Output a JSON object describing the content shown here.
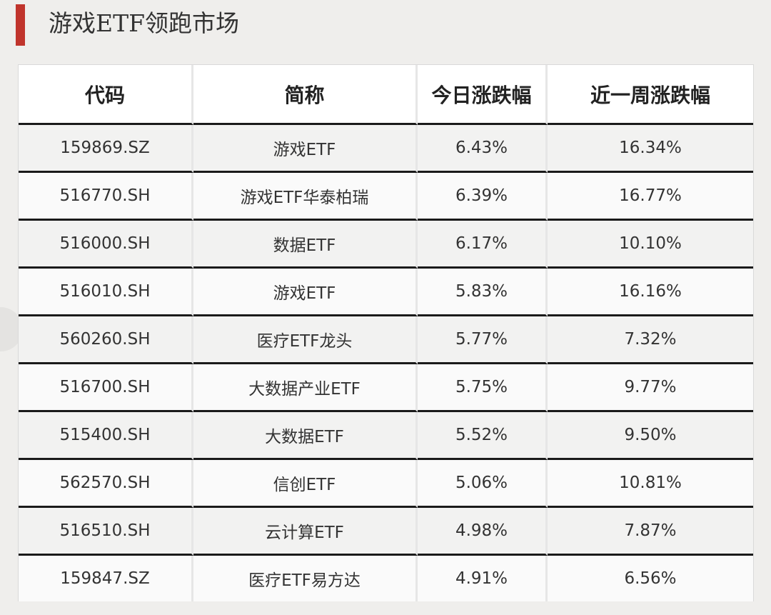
{
  "title": "游戏ETF领跑市场",
  "table": {
    "headers": [
      "代码",
      "简称",
      "今日涨跌幅",
      "近一周涨跌幅"
    ],
    "rows": [
      {
        "code": "159869.SZ",
        "name": "游戏ETF",
        "today": "6.43%",
        "week": "16.34%"
      },
      {
        "code": "516770.SH",
        "name": "游戏ETF华泰柏瑞",
        "today": "6.39%",
        "week": "16.77%"
      },
      {
        "code": "516000.SH",
        "name": "数据ETF",
        "today": "6.17%",
        "week": "10.10%"
      },
      {
        "code": "516010.SH",
        "name": "游戏ETF",
        "today": "5.83%",
        "week": "16.16%"
      },
      {
        "code": "560260.SH",
        "name": "医疗ETF龙头",
        "today": "5.77%",
        "week": "7.32%"
      },
      {
        "code": "516700.SH",
        "name": "大数据产业ETF",
        "today": "5.75%",
        "week": "9.77%"
      },
      {
        "code": "515400.SH",
        "name": "大数据ETF",
        "today": "5.52%",
        "week": "9.50%"
      },
      {
        "code": "562570.SH",
        "name": "信创ETF",
        "today": "5.06%",
        "week": "10.81%"
      },
      {
        "code": "516510.SH",
        "name": "云计算ETF",
        "today": "4.98%",
        "week": "7.87%"
      },
      {
        "code": "159847.SZ",
        "name": "医疗ETF易方达",
        "today": "4.91%",
        "week": "6.56%"
      }
    ]
  },
  "colors": {
    "accent": "#c0342c",
    "background": "#efeeec",
    "row_rule": "#1a1a1a"
  }
}
